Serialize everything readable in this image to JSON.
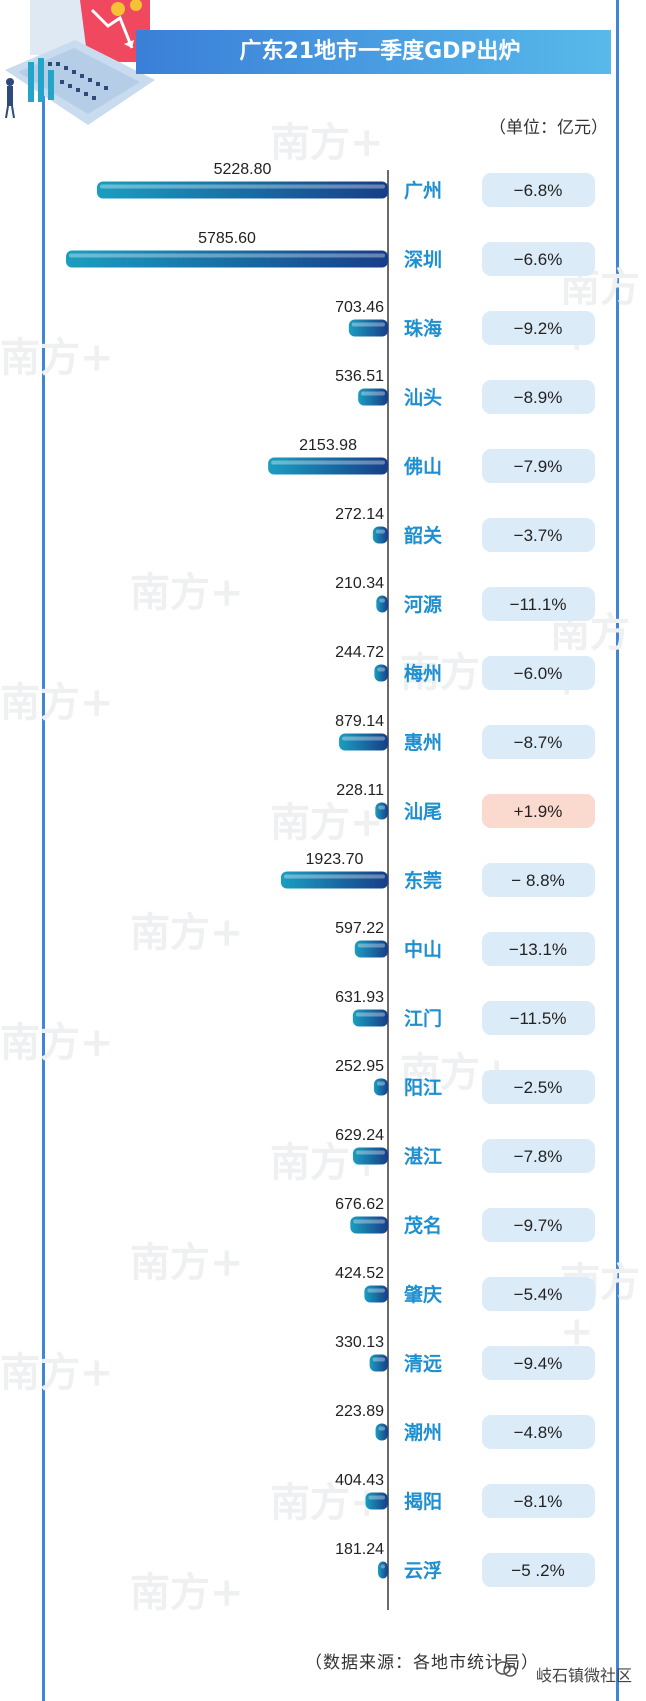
{
  "title": "广东21地市一季度GDP出炉",
  "unit": "（单位：亿元）",
  "source": "（数据来源：各地市统计局）",
  "watermark": "岐石镇微社区",
  "colors": {
    "frame": "#3f86d8",
    "bar_start": "#1a96b8",
    "bar_end": "#163d86",
    "city_label": "#1e8fd0",
    "badge_negative": "#dcebf8",
    "badge_positive": "#fad9cf"
  },
  "chart_data": {
    "type": "bar",
    "orientation": "horizontal",
    "title": "广东21地市一季度GDP出炉",
    "unit": "（单位：亿元）",
    "categories": [
      "广州",
      "深圳",
      "珠海",
      "汕头",
      "佛山",
      "韶关",
      "河源",
      "梅州",
      "惠州",
      "汕尾",
      "东莞",
      "中山",
      "江门",
      "阳江",
      "湛江",
      "茂名",
      "肇庆",
      "清远",
      "潮州",
      "揭阳",
      "云浮"
    ],
    "value_labels": [
      "5228.80",
      "5785.60",
      "703.46",
      "536.51",
      "2153.98",
      "272.14",
      "210.34",
      "244.72",
      "879.14",
      "228.11",
      "1923.70",
      "597.22",
      "631.93",
      "252.95",
      "629.24",
      "676.62",
      "424.52",
      "330.13",
      "223.89",
      "404.43",
      "181.24"
    ],
    "values": [
      5228.8,
      5785.6,
      703.46,
      536.51,
      2153.98,
      272.14,
      210.34,
      244.72,
      879.14,
      228.11,
      1923.7,
      597.22,
      631.93,
      252.95,
      629.24,
      676.62,
      424.52,
      330.13,
      223.89,
      404.43,
      181.24
    ],
    "growth_labels": [
      "−6.8%",
      "−6.6%",
      "−9.2%",
      "−8.9%",
      "−7.9%",
      "−3.7%",
      "−11.1%",
      "−6.0%",
      "−8.7%",
      "+1.9%",
      "− 8.8%",
      "−13.1%",
      "−11.5%",
      "−2.5%",
      "−7.8%",
      "−9.7%",
      "−5.4%",
      "−9.4%",
      "−4.8%",
      "−8.1%",
      "−5 .2%"
    ],
    "growth": [
      -6.8,
      -6.6,
      -9.2,
      -8.9,
      -7.9,
      -3.7,
      -11.1,
      -6.0,
      -8.7,
      1.9,
      -8.8,
      -13.1,
      -11.5,
      -2.5,
      -7.8,
      -9.7,
      -5.4,
      -9.4,
      -4.8,
      -8.1,
      -5.2
    ]
  }
}
